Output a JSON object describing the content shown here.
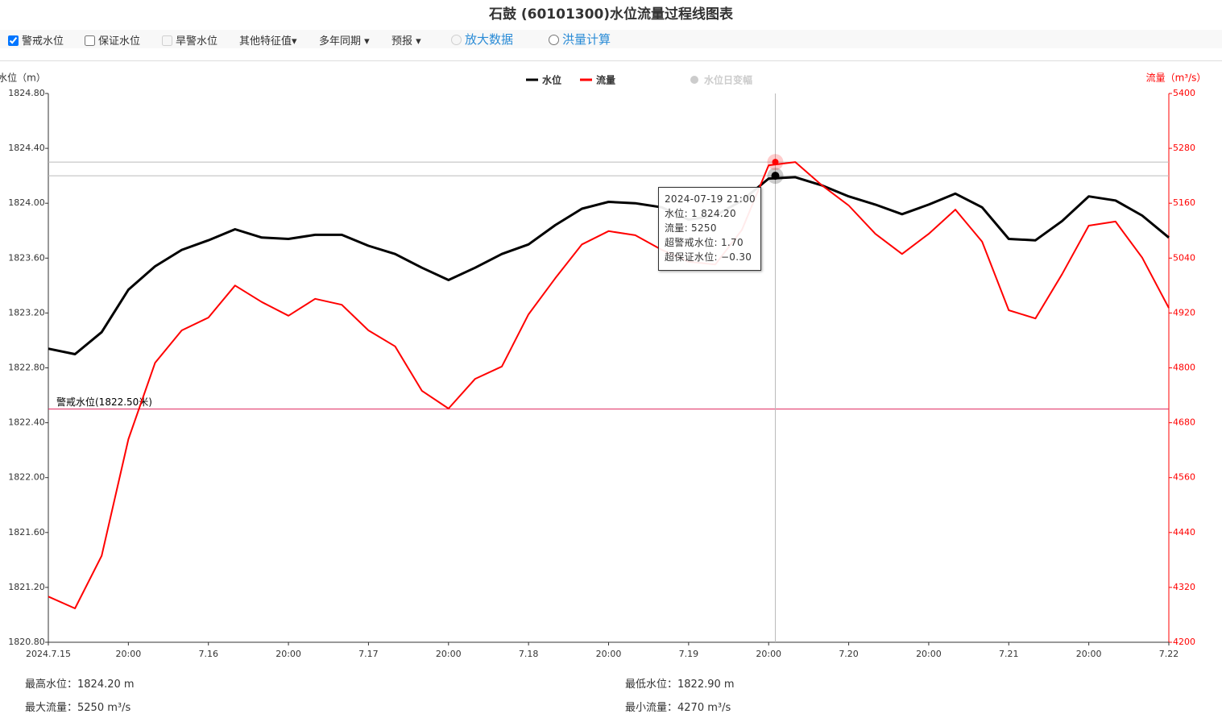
{
  "chart_data": {
    "type": "line",
    "title": "石鼓 (60101300)水位流量过程线图表",
    "y_axis_label": "水位（m）",
    "y2_axis_label": "流量（m³/s）",
    "x": [
      "2024-07-15 08:00",
      "2024-07-15 12:00",
      "2024-07-15 16:00",
      "2024-07-15 20:00",
      "2024-07-16 00:00",
      "2024-07-16 04:00",
      "2024-07-16 08:00",
      "2024-07-16 12:00",
      "2024-07-16 16:00",
      "2024-07-16 20:00",
      "2024-07-17 00:00",
      "2024-07-17 04:00",
      "2024-07-17 08:00",
      "2024-07-17 12:00",
      "2024-07-17 16:00",
      "2024-07-17 20:00",
      "2024-07-18 00:00",
      "2024-07-18 04:00",
      "2024-07-18 08:00",
      "2024-07-18 12:00",
      "2024-07-18 16:00",
      "2024-07-18 20:00",
      "2024-07-19 00:00",
      "2024-07-19 04:00",
      "2024-07-19 08:00",
      "2024-07-19 12:00",
      "2024-07-19 16:00",
      "2024-07-19 20:00",
      "2024-07-20 00:00",
      "2024-07-20 04:00",
      "2024-07-20 08:00",
      "2024-07-20 12:00",
      "2024-07-20 16:00",
      "2024-07-20 20:00",
      "2024-07-21 00:00",
      "2024-07-21 04:00",
      "2024-07-21 08:00",
      "2024-07-21 12:00",
      "2024-07-21 16:00",
      "2024-07-21 20:00",
      "2024-07-22 00:00",
      "2024-07-22 04:00",
      "2024-07-22 08:00"
    ],
    "series": [
      {
        "name": "水位",
        "color": "#000000",
        "values": [
          1822.94,
          1822.9,
          1823.06,
          1823.37,
          1823.54,
          1823.66,
          1823.73,
          1823.81,
          1823.75,
          1823.74,
          1823.77,
          1823.77,
          1823.69,
          1823.63,
          1823.53,
          1823.44,
          1823.53,
          1823.63,
          1823.7,
          1823.84,
          1823.96,
          1824.01,
          1824.0,
          1823.97,
          1823.88,
          1823.91,
          1824.02,
          1824.18,
          1824.19,
          1824.13,
          1824.05,
          1823.99,
          1823.92,
          1823.99,
          1824.07,
          1823.97,
          1823.74,
          1823.73,
          1823.87,
          1824.05,
          1824.02,
          1823.91,
          1823.75
        ]
      },
      {
        "name": "流量",
        "color": "#ff0000",
        "axis": "y2",
        "values": [
          4300,
          4274,
          4389,
          4644,
          4811,
          4882,
          4910,
          4980,
          4944,
          4914,
          4951,
          4938,
          4882,
          4847,
          4750,
          4711,
          4776,
          4803,
          4917,
          4996,
          5070,
          5099,
          5090,
          5058,
          5032,
          5026,
          5102,
          5243,
          5250,
          5199,
          5155,
          5093,
          5049,
          5093,
          5146,
          5076,
          4926,
          4908,
          5005,
          5111,
          5120,
          5041,
          4931
        ]
      }
    ],
    "inactive_legend": "水位日变幅",
    "xlim": [
      "2024-07-15 08:00",
      "2024-07-22 08:00"
    ],
    "xticks": [
      {
        "value": "2024-07-15 08:00",
        "label": "2024.7.15"
      },
      {
        "value": "2024-07-15 20:00",
        "label": "20:00"
      },
      {
        "value": "2024-07-16 08:00",
        "label": "7.16"
      },
      {
        "value": "2024-07-16 20:00",
        "label": "20:00"
      },
      {
        "value": "2024-07-17 08:00",
        "label": "7.17"
      },
      {
        "value": "2024-07-17 20:00",
        "label": "20:00"
      },
      {
        "value": "2024-07-18 08:00",
        "label": "7.18"
      },
      {
        "value": "2024-07-18 20:00",
        "label": "20:00"
      },
      {
        "value": "2024-07-19 08:00",
        "label": "7.19"
      },
      {
        "value": "2024-07-19 20:00",
        "label": "20:00"
      },
      {
        "value": "2024-07-20 08:00",
        "label": "7.20"
      },
      {
        "value": "2024-07-20 20:00",
        "label": "20:00"
      },
      {
        "value": "2024-07-21 08:00",
        "label": "7.21"
      },
      {
        "value": "2024-07-21 20:00",
        "label": "20:00"
      },
      {
        "value": "2024-07-22 08:00",
        "label": "7.22"
      }
    ],
    "ylim": [
      1820.8,
      1824.8
    ],
    "yticks": [
      {
        "value": 1820.8,
        "label": "1820.80"
      },
      {
        "value": 1821.2,
        "label": "1821.20"
      },
      {
        "value": 1821.6,
        "label": "1821.60"
      },
      {
        "value": 1822,
        "label": "1822.00"
      },
      {
        "value": 1822.4,
        "label": "1822.40"
      },
      {
        "value": 1822.8,
        "label": "1822.80"
      },
      {
        "value": 1823.2,
        "label": "1823.20"
      },
      {
        "value": 1823.6,
        "label": "1823.60"
      },
      {
        "value": 1824,
        "label": "1824.00"
      },
      {
        "value": 1824.4,
        "label": "1824.40"
      },
      {
        "value": 1824.8,
        "label": "1824.80"
      }
    ],
    "y2lim": [
      4200,
      5400
    ],
    "y2ticks": [
      4200,
      4320,
      4440,
      4560,
      4680,
      4800,
      4920,
      5040,
      5160,
      5280,
      5400
    ],
    "y2_color": "#ff0000",
    "warning_line": {
      "value": 1822.5,
      "label": "警戒水位(1822.50米)",
      "color": "#e0245e"
    },
    "highlight": {
      "x": "2024-07-19 21:00",
      "level": 1824.2,
      "flow": 5250
    },
    "tooltip": {
      "title": "2024-07-19 21:00",
      "rows": [
        "水位: 1 824.20",
        "流量: 5250",
        "超警戒水位: 1.70",
        "超保证水位: −0.30"
      ]
    }
  },
  "toolbar": [
    "警戒水位",
    "保证水位",
    "旱警水位",
    "其他特征值",
    "多年同期",
    "预报",
    "放大数据",
    "洪量计算"
  ],
  "summary": [
    "最高水位：1824.20  m",
    "最低水位：1822.90  m",
    "最大流量：5250 m³/s",
    "最小流量：4270 m³/s"
  ]
}
